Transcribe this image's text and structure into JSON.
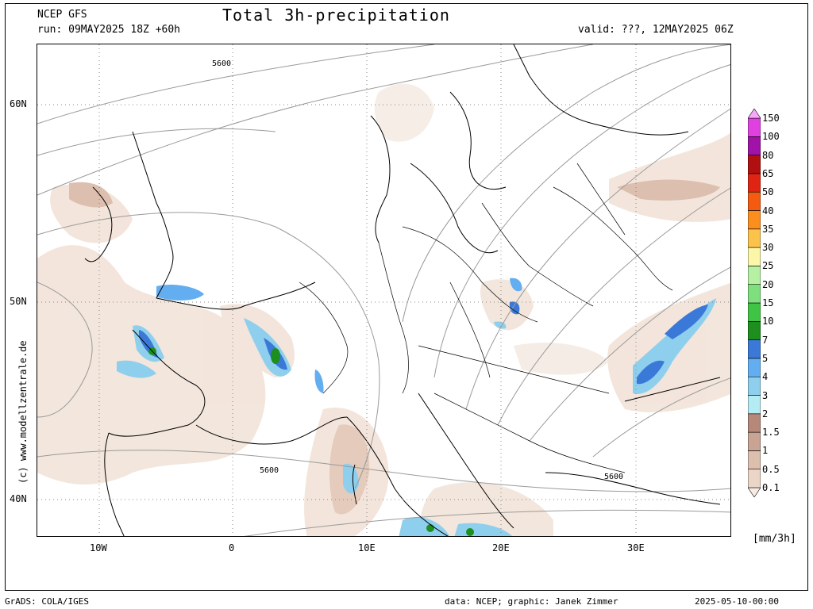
{
  "header": {
    "model": "NCEP GFS",
    "run": "run: 09MAY2025 18Z +60h",
    "title": "Total 3h-precipitation",
    "valid": "valid: ???, 12MAY2025 06Z"
  },
  "axes": {
    "lat_labels": [
      "60N",
      "50N",
      "40N"
    ],
    "lon_labels": [
      "10W",
      "0",
      "10E",
      "20E",
      "30E"
    ]
  },
  "contour_labels": [
    "5600",
    "5600",
    "5600"
  ],
  "watermark": "(c) www.modellzentrale.de",
  "colorbar": {
    "unit": "[mm/3h]",
    "levels": [
      "0.1",
      "0.5",
      "1",
      "1.5",
      "2",
      "3",
      "4",
      "5",
      "7",
      "10",
      "15",
      "20",
      "25",
      "30",
      "35",
      "40",
      "50",
      "65",
      "80",
      "100",
      "150"
    ],
    "colors": [
      "#f6ece4",
      "#ead5c6",
      "#ddbfae",
      "#c9a394",
      "#b5887a",
      "#b4ecf4",
      "#8fcfee",
      "#63aef0",
      "#3b79d8",
      "#1c8f1e",
      "#40c445",
      "#7ee07c",
      "#b5f0a3",
      "#fcf6a8",
      "#fbc34c",
      "#fb8e1c",
      "#f45a10",
      "#e02414",
      "#b01010",
      "#a012a8",
      "#e040e0",
      "#f8a8f8"
    ]
  },
  "footer": {
    "left": "GrADS: COLA/IGES",
    "center": "data: NCEP; graphic: Janek Zimmer",
    "right": "2025-05-10-00:00"
  }
}
